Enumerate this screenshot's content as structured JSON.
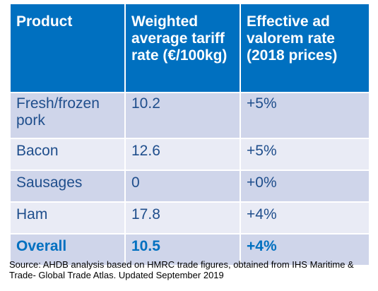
{
  "table": {
    "headers": [
      "Product",
      "Weighted average tariff rate (€/100kg)",
      "Effective ad valorem rate (2018 prices)"
    ],
    "rows": [
      {
        "product": "Fresh/frozen pork",
        "weighted_rate": "10.2",
        "ad_valorem": "+5%"
      },
      {
        "product": "Bacon",
        "weighted_rate": "12.6",
        "ad_valorem": "+5%"
      },
      {
        "product": "Sausages",
        "weighted_rate": "0",
        "ad_valorem": "+0%"
      },
      {
        "product": "Ham",
        "weighted_rate": "17.8",
        "ad_valorem": "+4%"
      },
      {
        "product": "Overall",
        "weighted_rate": "10.5",
        "ad_valorem": "+4%"
      }
    ]
  },
  "source": "Source: AHDB analysis based on HMRC trade figures, obtained from IHS Maritime & Trade- Global Trade Atlas. Updated September 2019",
  "colors": {
    "header_bg": "#0070c0",
    "header_text": "#ffffff",
    "row_dark": "#cfd5ea",
    "row_light": "#e9ebf5",
    "body_text": "#1f4e8c",
    "total_text": "#0070c0"
  }
}
